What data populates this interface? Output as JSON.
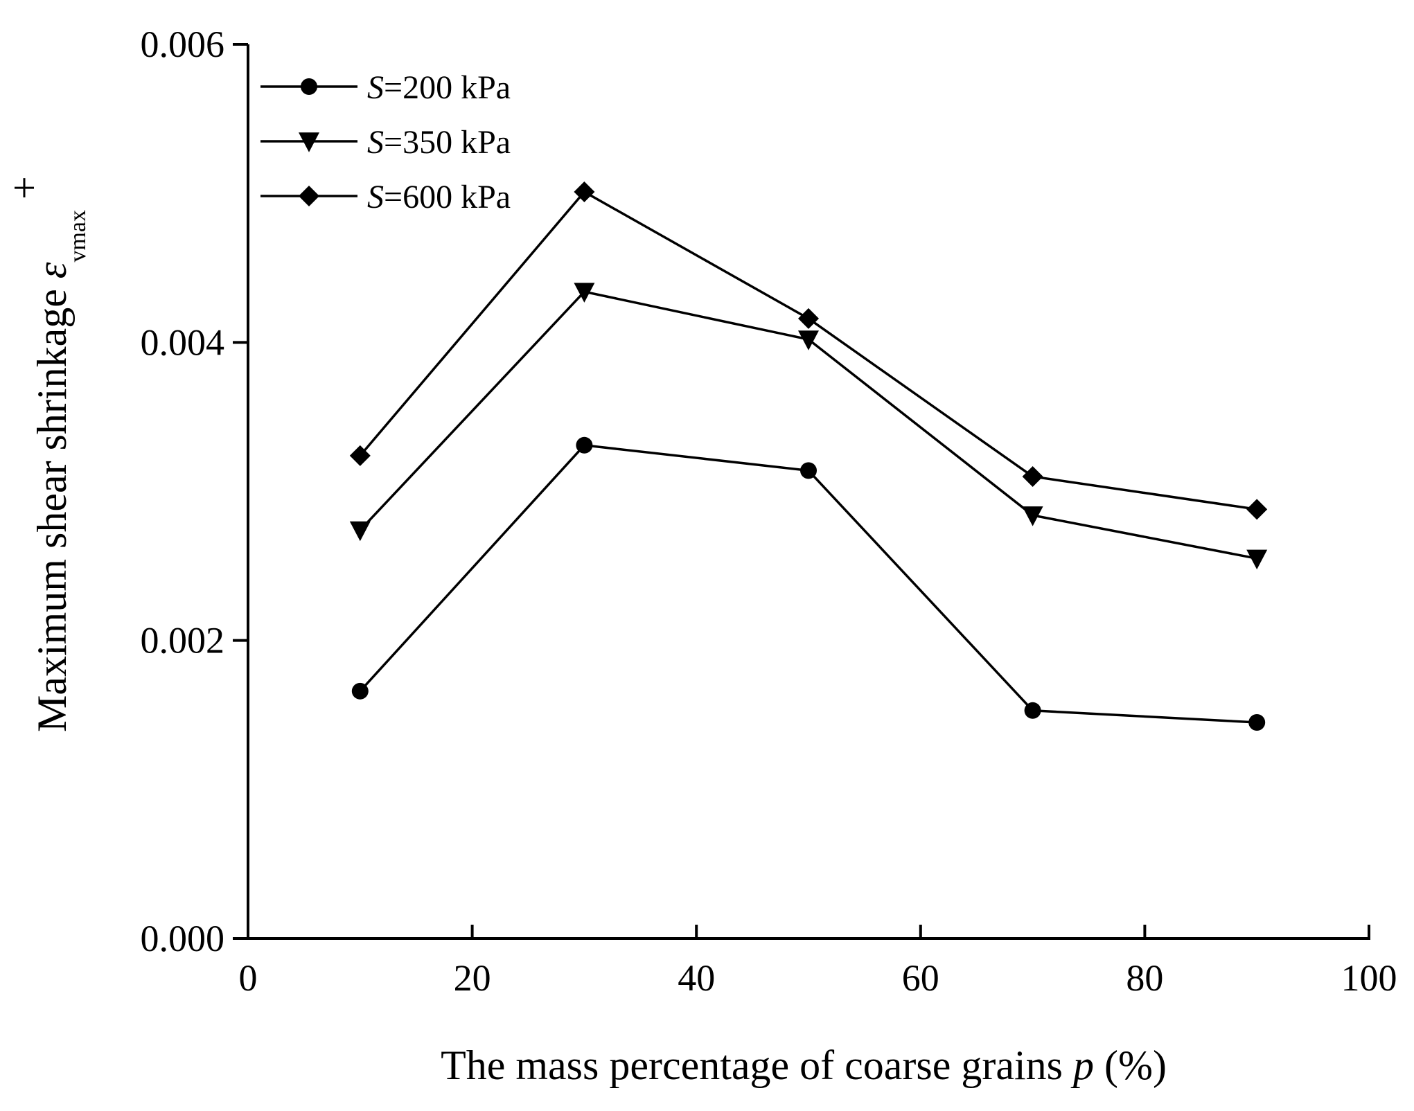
{
  "chart_data": {
    "type": "line",
    "title": "",
    "xlabel_prefix": "The mass percentage of coarse grains ",
    "xlabel_var": "p",
    "xlabel_suffix": " (%)",
    "ylabel_text": "Maximum shear shrinkage  ",
    "ylabel_symbol": "ε",
    "ylabel_superscript": "+",
    "ylabel_subscript": "vmax",
    "xlim": [
      0,
      100
    ],
    "ylim": [
      0,
      0.006
    ],
    "xticks": [
      "0",
      "20",
      "40",
      "60",
      "80",
      "100"
    ],
    "yticks": [
      "0.000",
      "0.002",
      "0.004",
      "0.006"
    ],
    "x": [
      10,
      30,
      50,
      70,
      90
    ],
    "grid": false,
    "legend_position": "top-left",
    "series": [
      {
        "name_var": "S",
        "name_rest": "=200 kPa",
        "marker": "circle",
        "values": [
          0.00166,
          0.00331,
          0.00314,
          0.00153,
          0.00145
        ]
      },
      {
        "name_var": "S",
        "name_rest": "=350 kPa",
        "marker": "triangle-down",
        "values": [
          0.00274,
          0.00434,
          0.00402,
          0.00284,
          0.00255
        ]
      },
      {
        "name_var": "S",
        "name_rest": "=600 kPa",
        "marker": "diamond",
        "values": [
          0.00324,
          0.00501,
          0.00416,
          0.0031,
          0.00288
        ]
      }
    ],
    "colors": {
      "line": "#000000",
      "marker": "#000000",
      "background": "#ffffff"
    }
  }
}
